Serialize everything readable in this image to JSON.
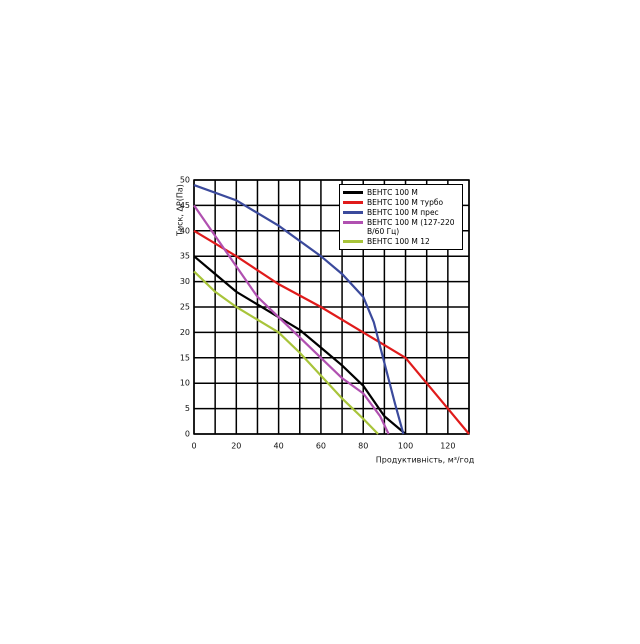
{
  "chart_data": {
    "type": "line",
    "xlabel": "Продуктивність, м³/год",
    "ylabel": "Тиск, ΔP(Па)",
    "xlim": [
      0,
      130
    ],
    "xticks": [
      0,
      20,
      40,
      60,
      80,
      100,
      120
    ],
    "ylim": [
      0,
      50
    ],
    "yticks": [
      0,
      5,
      10,
      15,
      20,
      25,
      30,
      35,
      40,
      45,
      50
    ],
    "x_minor_grid": [
      10,
      30,
      50,
      70,
      90,
      110,
      130
    ],
    "grid": true,
    "legend": "upper right",
    "series": [
      {
        "name": "ВЕНТС 100 М",
        "color": "#000000",
        "x": [
          0,
          10,
          20,
          30,
          40,
          50,
          60,
          70,
          80,
          90,
          100
        ],
        "values": [
          35,
          31.5,
          28,
          25.5,
          23,
          20.5,
          17,
          13.5,
          9.5,
          3.5,
          0
        ]
      },
      {
        "name": "ВЕНТС 100 М турбо",
        "color": "#e01b1b",
        "x": [
          0,
          20,
          40,
          60,
          80,
          90,
          100,
          110,
          120,
          130
        ],
        "values": [
          40,
          35,
          29.5,
          25,
          20,
          17.5,
          15,
          10,
          5,
          0
        ]
      },
      {
        "name": "ВЕНТС 100 М прес",
        "color": "#3b4a9c",
        "x": [
          0,
          20,
          40,
          60,
          70,
          80,
          85,
          90,
          95,
          99
        ],
        "values": [
          49,
          46,
          41,
          35,
          31.5,
          27,
          22,
          14,
          6,
          0
        ]
      },
      {
        "name": "ВЕНТС 100 М (127-220 В/60 Гц)",
        "color": "#b050b0",
        "x": [
          0,
          10,
          20,
          30,
          40,
          50,
          60,
          70,
          80,
          88,
          92
        ],
        "values": [
          45,
          39,
          33,
          27,
          23,
          19,
          15,
          11,
          8,
          3.5,
          0
        ]
      },
      {
        "name": "ВЕНТС 100 М 12",
        "color": "#a8c43a",
        "x": [
          0,
          10,
          20,
          30,
          40,
          50,
          60,
          70,
          80,
          87
        ],
        "values": [
          32,
          28,
          25,
          22.5,
          20,
          16,
          11.5,
          7,
          3,
          0
        ]
      }
    ]
  }
}
